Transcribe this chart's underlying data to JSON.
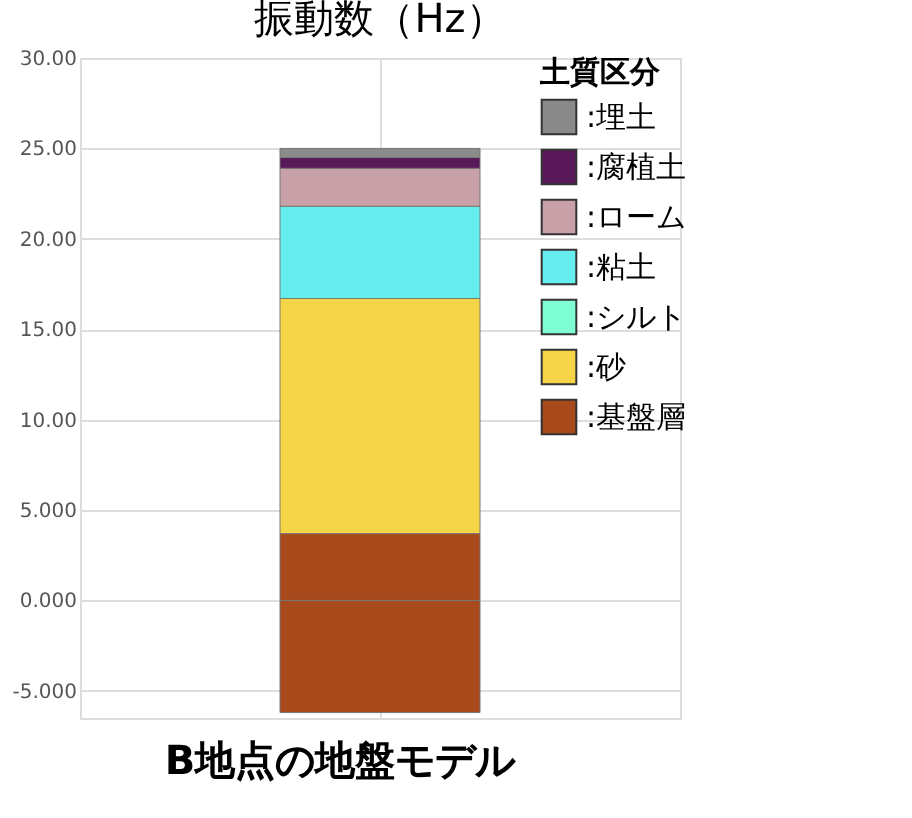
{
  "chart_data": {
    "type": "bar",
    "stacked": true,
    "title": "振動数（Hz）",
    "legend_title": "土質区分",
    "annotations": [
      "B地点の地盤モデル"
    ],
    "categories": [
      null
    ],
    "series": [
      {
        "name": ":基盤層",
        "color": "#a84a1c",
        "values": [
          3.7
        ]
      },
      {
        "name": ":砂",
        "color": "#f5d547",
        "values": [
          13.0
        ]
      },
      {
        "name": ":シルト",
        "color": "#7fffd4",
        "values": [
          0
        ]
      },
      {
        "name": ":粘土",
        "color": "#66eeee",
        "values": [
          5.1
        ]
      },
      {
        "name": ":ローム",
        "color": "#c8a0a8",
        "values": [
          2.1
        ]
      },
      {
        "name": ":腐植土",
        "color": "#5a1a5a",
        "values": [
          0.6
        ]
      },
      {
        "name": ":埋土",
        "color": "#8a8a8a",
        "values": [
          0.5
        ]
      },
      {
        "color": "#a84a1c",
        "values": [
          -6.2
        ]
      }
    ],
    "ylim": [
      -6.5,
      30
    ],
    "yticks": [
      {
        "value": -5,
        "label": "-5.000"
      },
      {
        "value": 0,
        "label": "0.000"
      },
      {
        "value": 5,
        "label": "5.000"
      },
      {
        "value": 10,
        "label": "10.00"
      },
      {
        "value": 15,
        "label": "15.00"
      },
      {
        "value": 20,
        "label": "20.00"
      },
      {
        "value": 25,
        "label": "25.00"
      },
      {
        "value": 30,
        "label": "30.00"
      }
    ],
    "grid": true,
    "legend": "right"
  }
}
